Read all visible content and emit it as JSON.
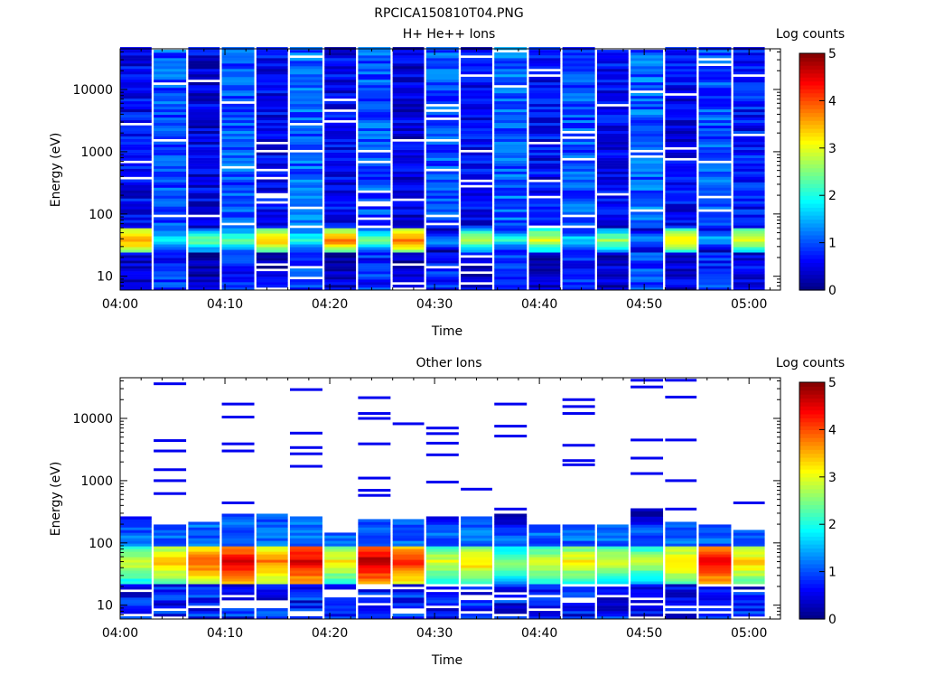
{
  "window_title": "RPCICA150810T04.PNG",
  "colormap": [
    "#00007f",
    "#0000ff",
    "#007fff",
    "#00ffff",
    "#7fff7f",
    "#ffff00",
    "#ff7f00",
    "#ff0000",
    "#7f0000"
  ],
  "chart_data": [
    {
      "type": "heatmap",
      "title": "H+ He++ Ions",
      "xlabel": "Time",
      "ylabel": "Energy (eV)",
      "ylog": true,
      "ylim": [
        6,
        45000
      ],
      "xlim": [
        0,
        63
      ],
      "x_ticks": [
        "04:00",
        "04:10",
        "04:20",
        "04:30",
        "04:40",
        "04:50",
        "05:00"
      ],
      "x_tick_values": [
        0,
        10,
        20,
        30,
        40,
        50,
        60
      ],
      "y_ticks": [
        "10",
        "100",
        "1000",
        "10000"
      ],
      "y_tick_values": [
        10,
        100,
        1000,
        10000
      ],
      "colorbar": {
        "label": "Log counts",
        "range": [
          0,
          5
        ],
        "ticks": [
          "0",
          "1",
          "2",
          "3",
          "4",
          "5"
        ]
      },
      "time_bins": [
        {
          "t0": 0.0,
          "t1": 3.0
        },
        {
          "t0": 3.2,
          "t1": 6.3
        },
        {
          "t0": 6.5,
          "t1": 9.5
        },
        {
          "t0": 9.7,
          "t1": 12.8
        },
        {
          "t0": 13.0,
          "t1": 16.0
        },
        {
          "t0": 16.2,
          "t1": 19.3
        },
        {
          "t0": 19.5,
          "t1": 22.5
        },
        {
          "t0": 22.7,
          "t1": 25.8
        },
        {
          "t0": 26.0,
          "t1": 29.0
        },
        {
          "t0": 29.2,
          "t1": 32.3
        },
        {
          "t0": 32.5,
          "t1": 35.5
        },
        {
          "t0": 35.7,
          "t1": 38.8
        },
        {
          "t0": 39.0,
          "t1": 42.0
        },
        {
          "t0": 42.2,
          "t1": 45.3
        },
        {
          "t0": 45.5,
          "t1": 48.5
        },
        {
          "t0": 48.7,
          "t1": 51.8
        },
        {
          "t0": 52.0,
          "t1": 55.0
        },
        {
          "t0": 55.2,
          "t1": 58.3
        },
        {
          "t0": 58.5,
          "t1": 61.5
        }
      ],
      "background_level": [
        0.6,
        1.0,
        0.5,
        1.0,
        0.6,
        1.1,
        0.6,
        1.0,
        0.5,
        1.0,
        0.6,
        1.1,
        0.6,
        1.0,
        0.6,
        1.1,
        0.6,
        1.0,
        0.7
      ],
      "band": {
        "e_low": 25,
        "e_high": 60,
        "peak_level": [
          3.8,
          2.0,
          2.5,
          2.4,
          3.6,
          2.2,
          3.8,
          2.4,
          3.8,
          1.5,
          2.8,
          2.0,
          3.1,
          1.8,
          2.6,
          1.5,
          3.4,
          1.6,
          3.2
        ]
      }
    },
    {
      "type": "heatmap",
      "title": "Other Ions",
      "xlabel": "Time",
      "ylabel": "Energy (eV)",
      "ylog": true,
      "ylim": [
        6,
        45000
      ],
      "xlim": [
        0,
        63
      ],
      "x_ticks": [
        "04:00",
        "04:10",
        "04:20",
        "04:30",
        "04:40",
        "04:50",
        "05:00"
      ],
      "x_tick_values": [
        0,
        10,
        20,
        30,
        40,
        50,
        60
      ],
      "y_ticks": [
        "10",
        "100",
        "1000",
        "10000"
      ],
      "y_tick_values": [
        10,
        100,
        1000,
        10000
      ],
      "colorbar": {
        "label": "Log counts",
        "range": [
          0,
          5
        ],
        "ticks": [
          "0",
          "1",
          "2",
          "3",
          "4",
          "5"
        ]
      },
      "time_bins": [
        {
          "t0": 0.0,
          "t1": 3.0
        },
        {
          "t0": 3.2,
          "t1": 6.3
        },
        {
          "t0": 6.5,
          "t1": 9.5
        },
        {
          "t0": 9.7,
          "t1": 12.8
        },
        {
          "t0": 13.0,
          "t1": 16.0
        },
        {
          "t0": 16.2,
          "t1": 19.3
        },
        {
          "t0": 19.5,
          "t1": 22.5
        },
        {
          "t0": 22.7,
          "t1": 25.8
        },
        {
          "t0": 26.0,
          "t1": 29.0
        },
        {
          "t0": 29.2,
          "t1": 32.3
        },
        {
          "t0": 32.5,
          "t1": 35.5
        },
        {
          "t0": 35.7,
          "t1": 38.8
        },
        {
          "t0": 39.0,
          "t1": 42.0
        },
        {
          "t0": 42.2,
          "t1": 45.3
        },
        {
          "t0": 45.5,
          "t1": 48.5
        },
        {
          "t0": 48.7,
          "t1": 51.8
        },
        {
          "t0": 52.0,
          "t1": 55.0
        },
        {
          "t0": 55.2,
          "t1": 58.3
        },
        {
          "t0": 58.5,
          "t1": 61.5
        }
      ],
      "column_top_energy": [
        270,
        200,
        210,
        300,
        300,
        260,
        140,
        240,
        250,
        260,
        280,
        300,
        200,
        200,
        200,
        350,
        220,
        200,
        170
      ],
      "peak_level": [
        3.0,
        3.5,
        4.0,
        4.5,
        3.8,
        4.6,
        3.2,
        4.8,
        4.2,
        3.0,
        3.4,
        2.6,
        3.0,
        3.2,
        3.0,
        2.8,
        3.4,
        4.6,
        3.4
      ],
      "sporadic_lines": [
        {
          "bin": 1,
          "energies": [
            36000,
            4400,
            3000,
            1500,
            1000,
            620
          ]
        },
        {
          "bin": 3,
          "energies": [
            17000,
            10500,
            3900,
            3000,
            440
          ]
        },
        {
          "bin": 5,
          "energies": [
            29000,
            5800,
            3400,
            2700,
            1700
          ]
        },
        {
          "bin": 7,
          "energies": [
            21500,
            12000,
            10000,
            3900,
            1100,
            700,
            580
          ]
        },
        {
          "bin": 8,
          "energies": [
            8200
          ]
        },
        {
          "bin": 9,
          "energies": [
            7000,
            5700,
            4000,
            2600,
            950
          ]
        },
        {
          "bin": 10,
          "energies": [
            730
          ]
        },
        {
          "bin": 11,
          "energies": [
            17000,
            7500,
            5200,
            350
          ]
        },
        {
          "bin": 13,
          "energies": [
            20000,
            15500,
            12000,
            3700,
            2100,
            1800
          ]
        },
        {
          "bin": 15,
          "energies": [
            41000,
            32000,
            4500,
            2300,
            1300
          ]
        },
        {
          "bin": 16,
          "energies": [
            41000,
            22000,
            4500,
            1000,
            350
          ]
        },
        {
          "bin": 18,
          "energies": [
            440
          ]
        }
      ]
    }
  ]
}
